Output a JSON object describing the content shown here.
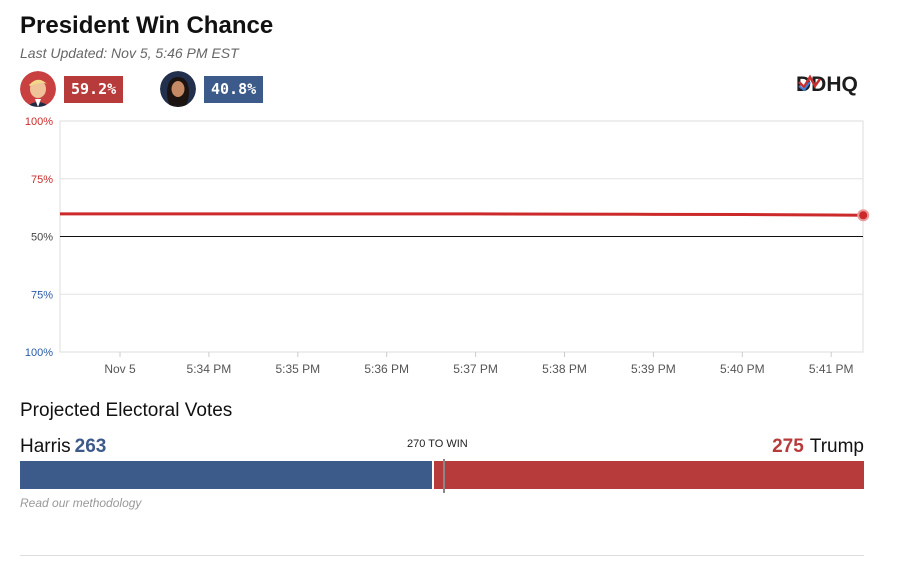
{
  "header": {
    "title": "President Win Chance",
    "updated": "Last Updated: Nov 5, 5:46 PM EST"
  },
  "candidates": [
    {
      "name": "Trump",
      "pct": "59.2%",
      "color": "#b83b3b"
    },
    {
      "name": "Harris",
      "pct": "40.8%",
      "color": "#3c5a8a"
    }
  ],
  "logo": {
    "text": "DDHQ"
  },
  "chart_data": {
    "type": "line",
    "y_tick_labels": [
      "100%",
      "75%",
      "50%",
      "75%",
      "100%"
    ],
    "y_tick_colors": [
      "#cc2a2a",
      "#cc2a2a",
      "#444444",
      "#2a5aa8",
      "#2a5aa8"
    ],
    "ylim": [
      0,
      100
    ],
    "x_tick_labels": [
      "Nov 5",
      "5:34 PM",
      "5:35 PM",
      "5:36 PM",
      "5:37 PM",
      "5:38 PM",
      "5:39 PM",
      "5:40 PM",
      "5:41 PM"
    ],
    "series": [
      {
        "color": "#cc2a2a",
        "x": [
          0,
          1,
          2,
          3,
          4,
          5,
          6,
          7,
          8,
          8.36
        ],
        "values": [
          59.8,
          59.8,
          59.8,
          59.8,
          59.8,
          59.7,
          59.6,
          59.5,
          59.3,
          59.2
        ]
      }
    ],
    "grid": true
  },
  "electoral": {
    "title": "Projected Electoral Votes",
    "left_name": "Harris",
    "left_votes": "263",
    "right_votes": "275",
    "right_name": "Trump",
    "to_win_label": "270 TO WIN",
    "left_value": 263,
    "right_value": 275,
    "total": 538,
    "to_win": 270
  },
  "footer": {
    "methodology": "Read our methodology"
  }
}
